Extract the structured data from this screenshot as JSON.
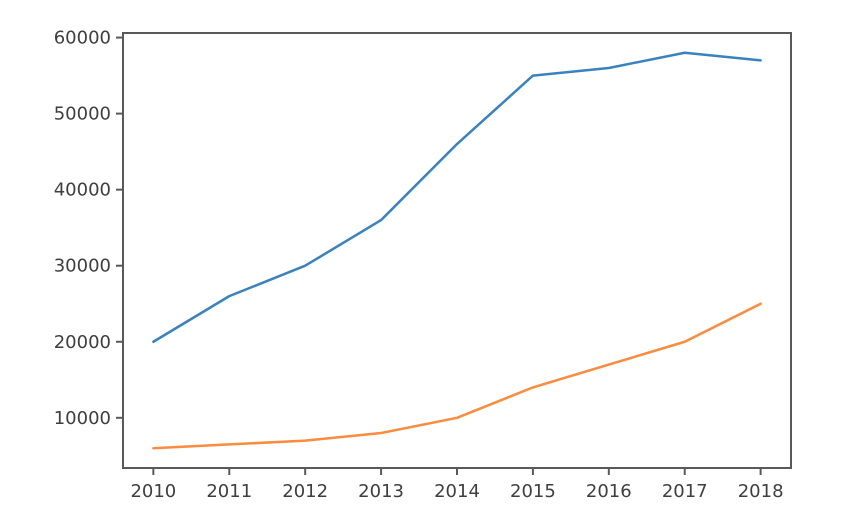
{
  "figure": {
    "background": "#ffffff",
    "spine_color": "#59595c",
    "tick_color": "#59595c",
    "tick_label_color": "#3e3e40",
    "tick_font_size": 18
  },
  "chart_data": {
    "type": "line",
    "x": [
      2010,
      2011,
      2012,
      2013,
      2014,
      2015,
      2016,
      2017,
      2018
    ],
    "series": [
      {
        "name": "upper-blue-series",
        "color": "#3a82bd",
        "values": [
          20000,
          26000,
          30000,
          36000,
          46000,
          55000,
          56000,
          58000,
          57000
        ]
      },
      {
        "name": "lower-orange-series",
        "color": "#fb8b3d",
        "values": [
          6000,
          6500,
          7000,
          8000,
          10000,
          14000,
          17000,
          20000,
          25000
        ]
      }
    ],
    "title": "",
    "xlabel": "",
    "ylabel": "",
    "xticks": [
      "2010",
      "2011",
      "2012",
      "2013",
      "2014",
      "2015",
      "2016",
      "2017",
      "2018"
    ],
    "yticks": [
      "10000",
      "20000",
      "30000",
      "40000",
      "50000",
      "60000"
    ],
    "xtick_values": [
      2010,
      2011,
      2012,
      2013,
      2014,
      2015,
      2016,
      2017,
      2018
    ],
    "ytick_values": [
      10000,
      20000,
      30000,
      40000,
      50000,
      60000
    ],
    "xlim": [
      2009.6,
      2018.4
    ],
    "ylim": [
      3400,
      60600
    ],
    "grid": false,
    "legend": "none",
    "line_width": 2.5
  }
}
